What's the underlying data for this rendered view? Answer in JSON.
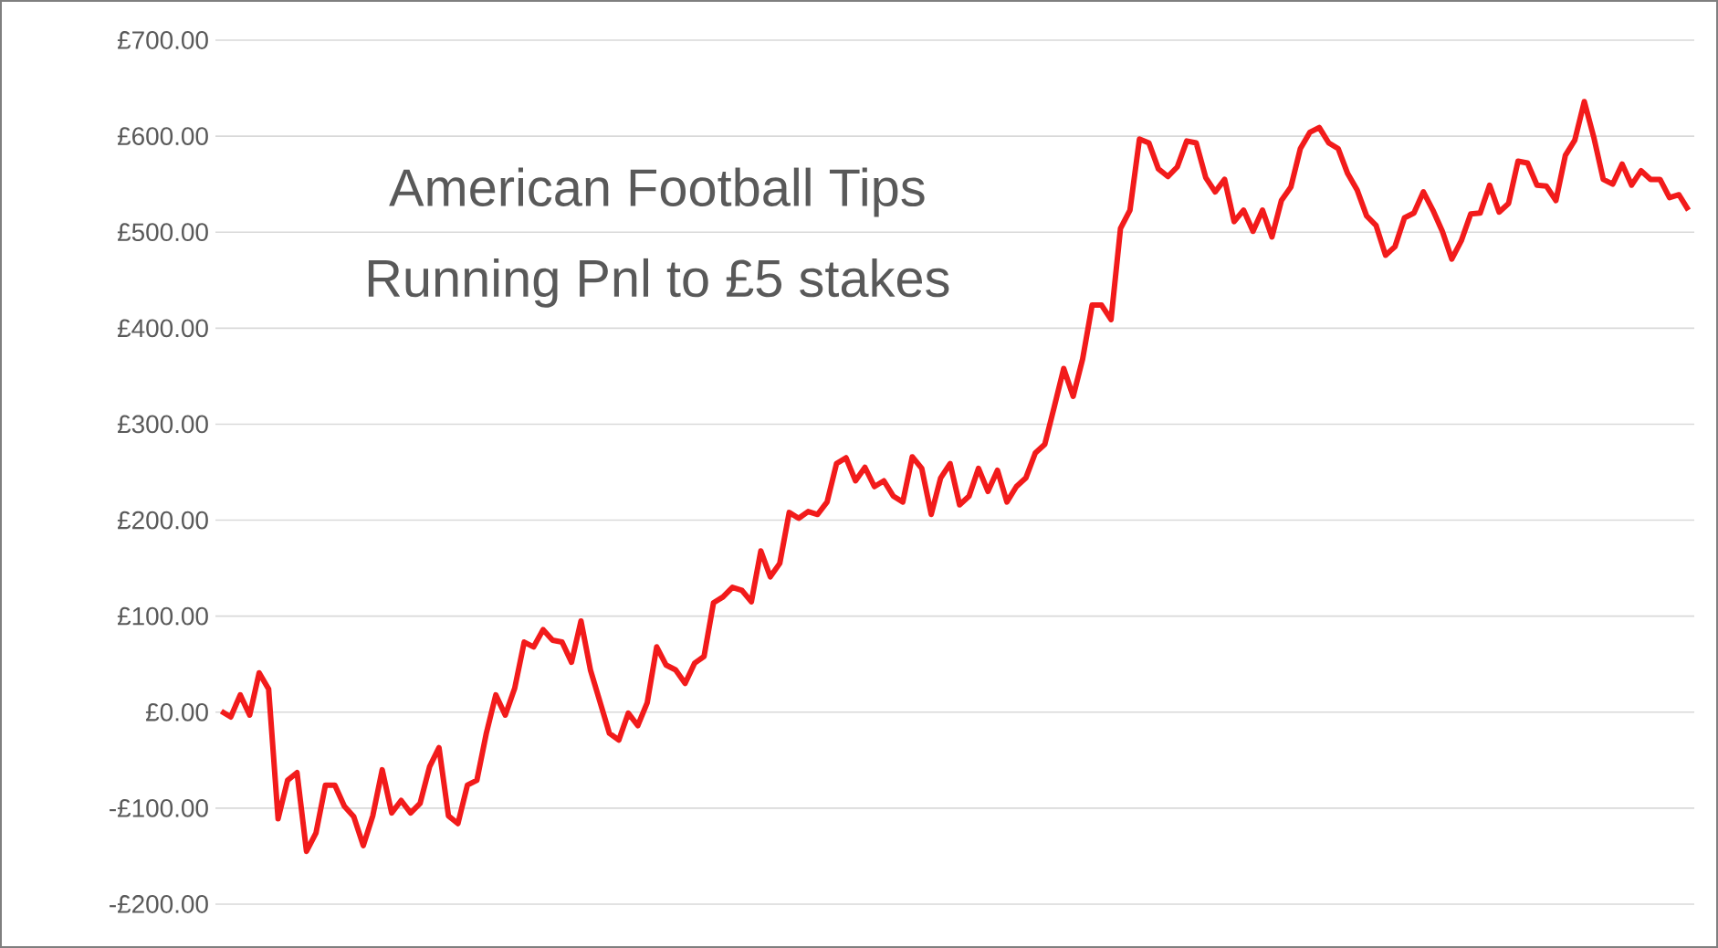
{
  "chart_data": {
    "type": "line",
    "title": "American Football Tips",
    "subtitle": "Running Pnl to £5 stakes",
    "categories": [
      null,
      null,
      null,
      null,
      null,
      null,
      null,
      null,
      null,
      null,
      null,
      null,
      null,
      null,
      null,
      null,
      null,
      null,
      null,
      null,
      null,
      null,
      null,
      null,
      null,
      null,
      null,
      null,
      null,
      null,
      null,
      null,
      null,
      null,
      null,
      null,
      null,
      null,
      null,
      null,
      null,
      null,
      null,
      null,
      null,
      null,
      null,
      null,
      null,
      null,
      null,
      null,
      null,
      null,
      null,
      null,
      null,
      null,
      null,
      null,
      null,
      null,
      null,
      null,
      null,
      null,
      null,
      null,
      null,
      null,
      null,
      null,
      null,
      null,
      null,
      null,
      null,
      null,
      null,
      null,
      null,
      null,
      null,
      null,
      null,
      null,
      null,
      null,
      null,
      null,
      null,
      null,
      null,
      null,
      null,
      null,
      null,
      null,
      null,
      null,
      null,
      null,
      null,
      null,
      null,
      null,
      null,
      null,
      null,
      null,
      null,
      null,
      null,
      null,
      null,
      null,
      null,
      null,
      null,
      null,
      null,
      null,
      null,
      null,
      null,
      null,
      null,
      null,
      null,
      null,
      null,
      null,
      null,
      null,
      null,
      null,
      null,
      null,
      null,
      null,
      null,
      null,
      null,
      null,
      null,
      null,
      null,
      null,
      null,
      null,
      null,
      null,
      null,
      null,
      null,
      null
    ],
    "series": [
      {
        "color": "#f21b1b",
        "values": [
          1,
          -5,
          18,
          -3,
          41,
          24,
          -111,
          -71,
          -63,
          -145,
          -126,
          -76,
          -76,
          -98,
          -109,
          -139,
          -108,
          -60,
          -105,
          -92,
          -105,
          -95,
          -57,
          -37,
          -108,
          -116,
          -76,
          -71,
          -22,
          18,
          -3,
          25,
          73,
          68,
          86,
          75,
          73,
          52,
          95,
          44,
          11,
          -22,
          -29,
          -1,
          -14,
          10,
          68,
          49,
          44,
          30,
          51,
          58,
          114,
          120,
          130,
          127,
          115,
          168,
          141,
          155,
          208,
          202,
          209,
          206,
          219,
          259,
          265,
          241,
          255,
          235,
          241,
          225,
          219,
          266,
          254,
          206,
          244,
          259,
          216,
          225,
          254,
          230,
          252,
          219,
          235,
          244,
          270,
          279,
          318,
          358,
          329,
          368,
          424,
          424,
          409,
          504,
          523,
          597,
          593,
          566,
          558,
          568,
          595,
          593,
          557,
          542,
          555,
          511,
          523,
          501,
          523,
          495,
          533,
          547,
          587,
          604,
          609,
          593,
          587,
          561,
          544,
          517,
          507,
          476,
          485,
          515,
          520,
          542,
          523,
          501,
          472,
          491,
          519,
          520,
          549,
          521,
          530,
          574,
          572,
          549,
          548,
          533,
          580,
          596,
          636,
          599,
          555,
          550,
          571,
          549,
          564,
          555,
          555,
          536,
          539,
          523
        ]
      }
    ],
    "ylim": [
      -200,
      700
    ],
    "yticks": [
      {
        "value": -200,
        "label": "-£200.00"
      },
      {
        "value": -100,
        "label": "-£100.00"
      },
      {
        "value": 0,
        "label": "£0.00"
      },
      {
        "value": 100,
        "label": "£100.00"
      },
      {
        "value": 200,
        "label": "£200.00"
      },
      {
        "value": 300,
        "label": "£300.00"
      },
      {
        "value": 400,
        "label": "£400.00"
      },
      {
        "value": 500,
        "label": "£500.00"
      },
      {
        "value": 600,
        "label": "£600.00"
      },
      {
        "value": 700,
        "label": "£700.00"
      }
    ],
    "grid": "y",
    "marker": "none",
    "line_style": "solid"
  }
}
